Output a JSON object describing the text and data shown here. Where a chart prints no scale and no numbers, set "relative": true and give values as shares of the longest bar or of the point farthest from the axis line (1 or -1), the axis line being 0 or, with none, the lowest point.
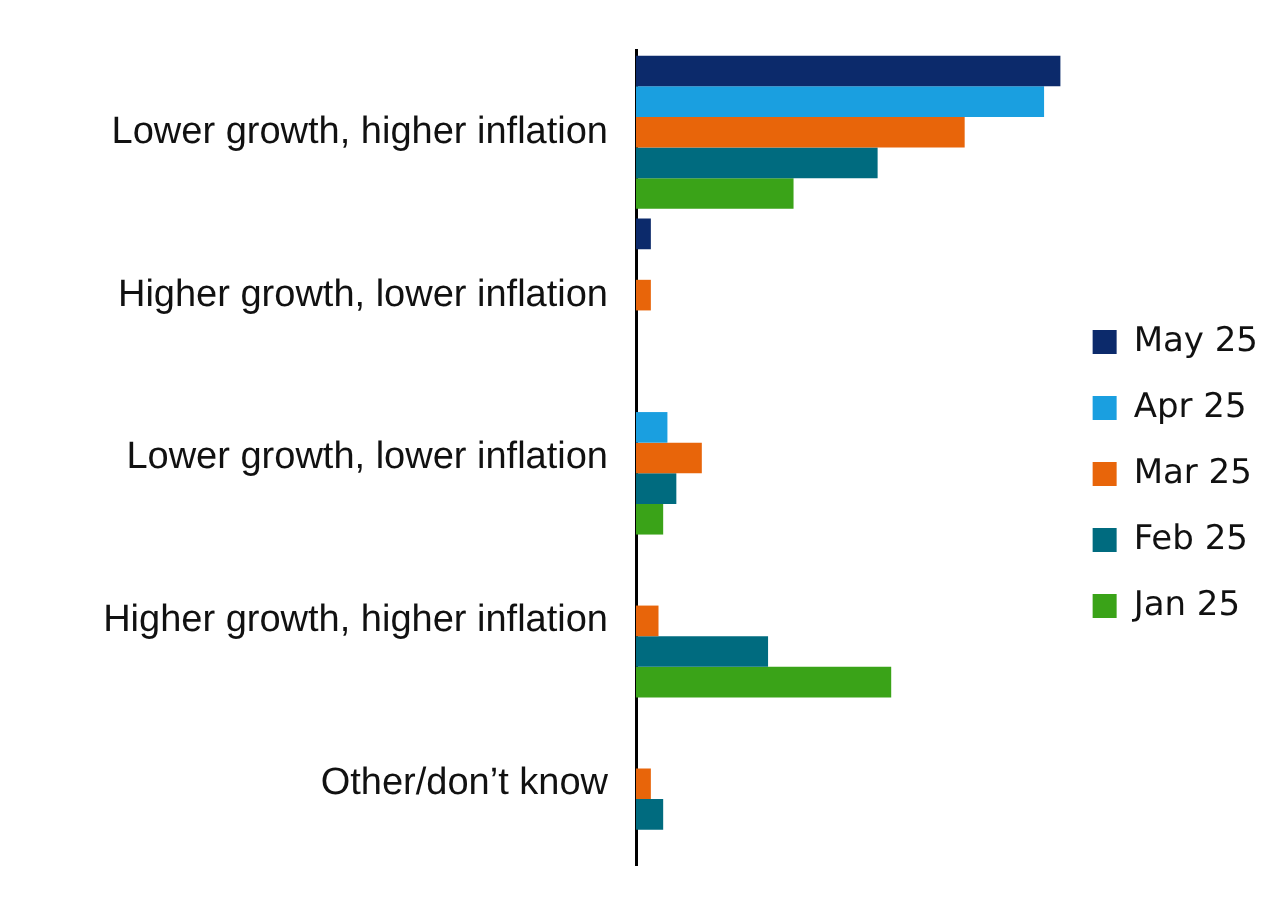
{
  "chart_data": {
    "type": "bar",
    "orientation": "horizontal",
    "relative": true,
    "legend": "right",
    "categories": [
      "Lower growth, higher inflation",
      "Higher growth, lower inflation",
      "Lower growth, lower inflation",
      "Higher growth, higher inflation",
      "Other/don’t know"
    ],
    "series": [
      {
        "name": "May 25",
        "color": "#0c2a6b",
        "values": [
          1,
          0.035,
          0,
          0,
          0
        ]
      },
      {
        "name": "Apr 25",
        "color": "#1a9fe0",
        "values": [
          0.961,
          0,
          0.074,
          0,
          0
        ]
      },
      {
        "name": "Mar 25",
        "color": "#e8650a",
        "values": [
          0.774,
          0.035,
          0.155,
          0.053,
          0.035
        ]
      },
      {
        "name": "Feb 25",
        "color": "#006b7f",
        "values": [
          0.569,
          0,
          0.095,
          0.311,
          0.064
        ]
      },
      {
        "name": "Jan 25",
        "color": "#3aa318",
        "values": [
          0.371,
          0,
          0.064,
          0.601,
          0
        ]
      }
    ]
  }
}
